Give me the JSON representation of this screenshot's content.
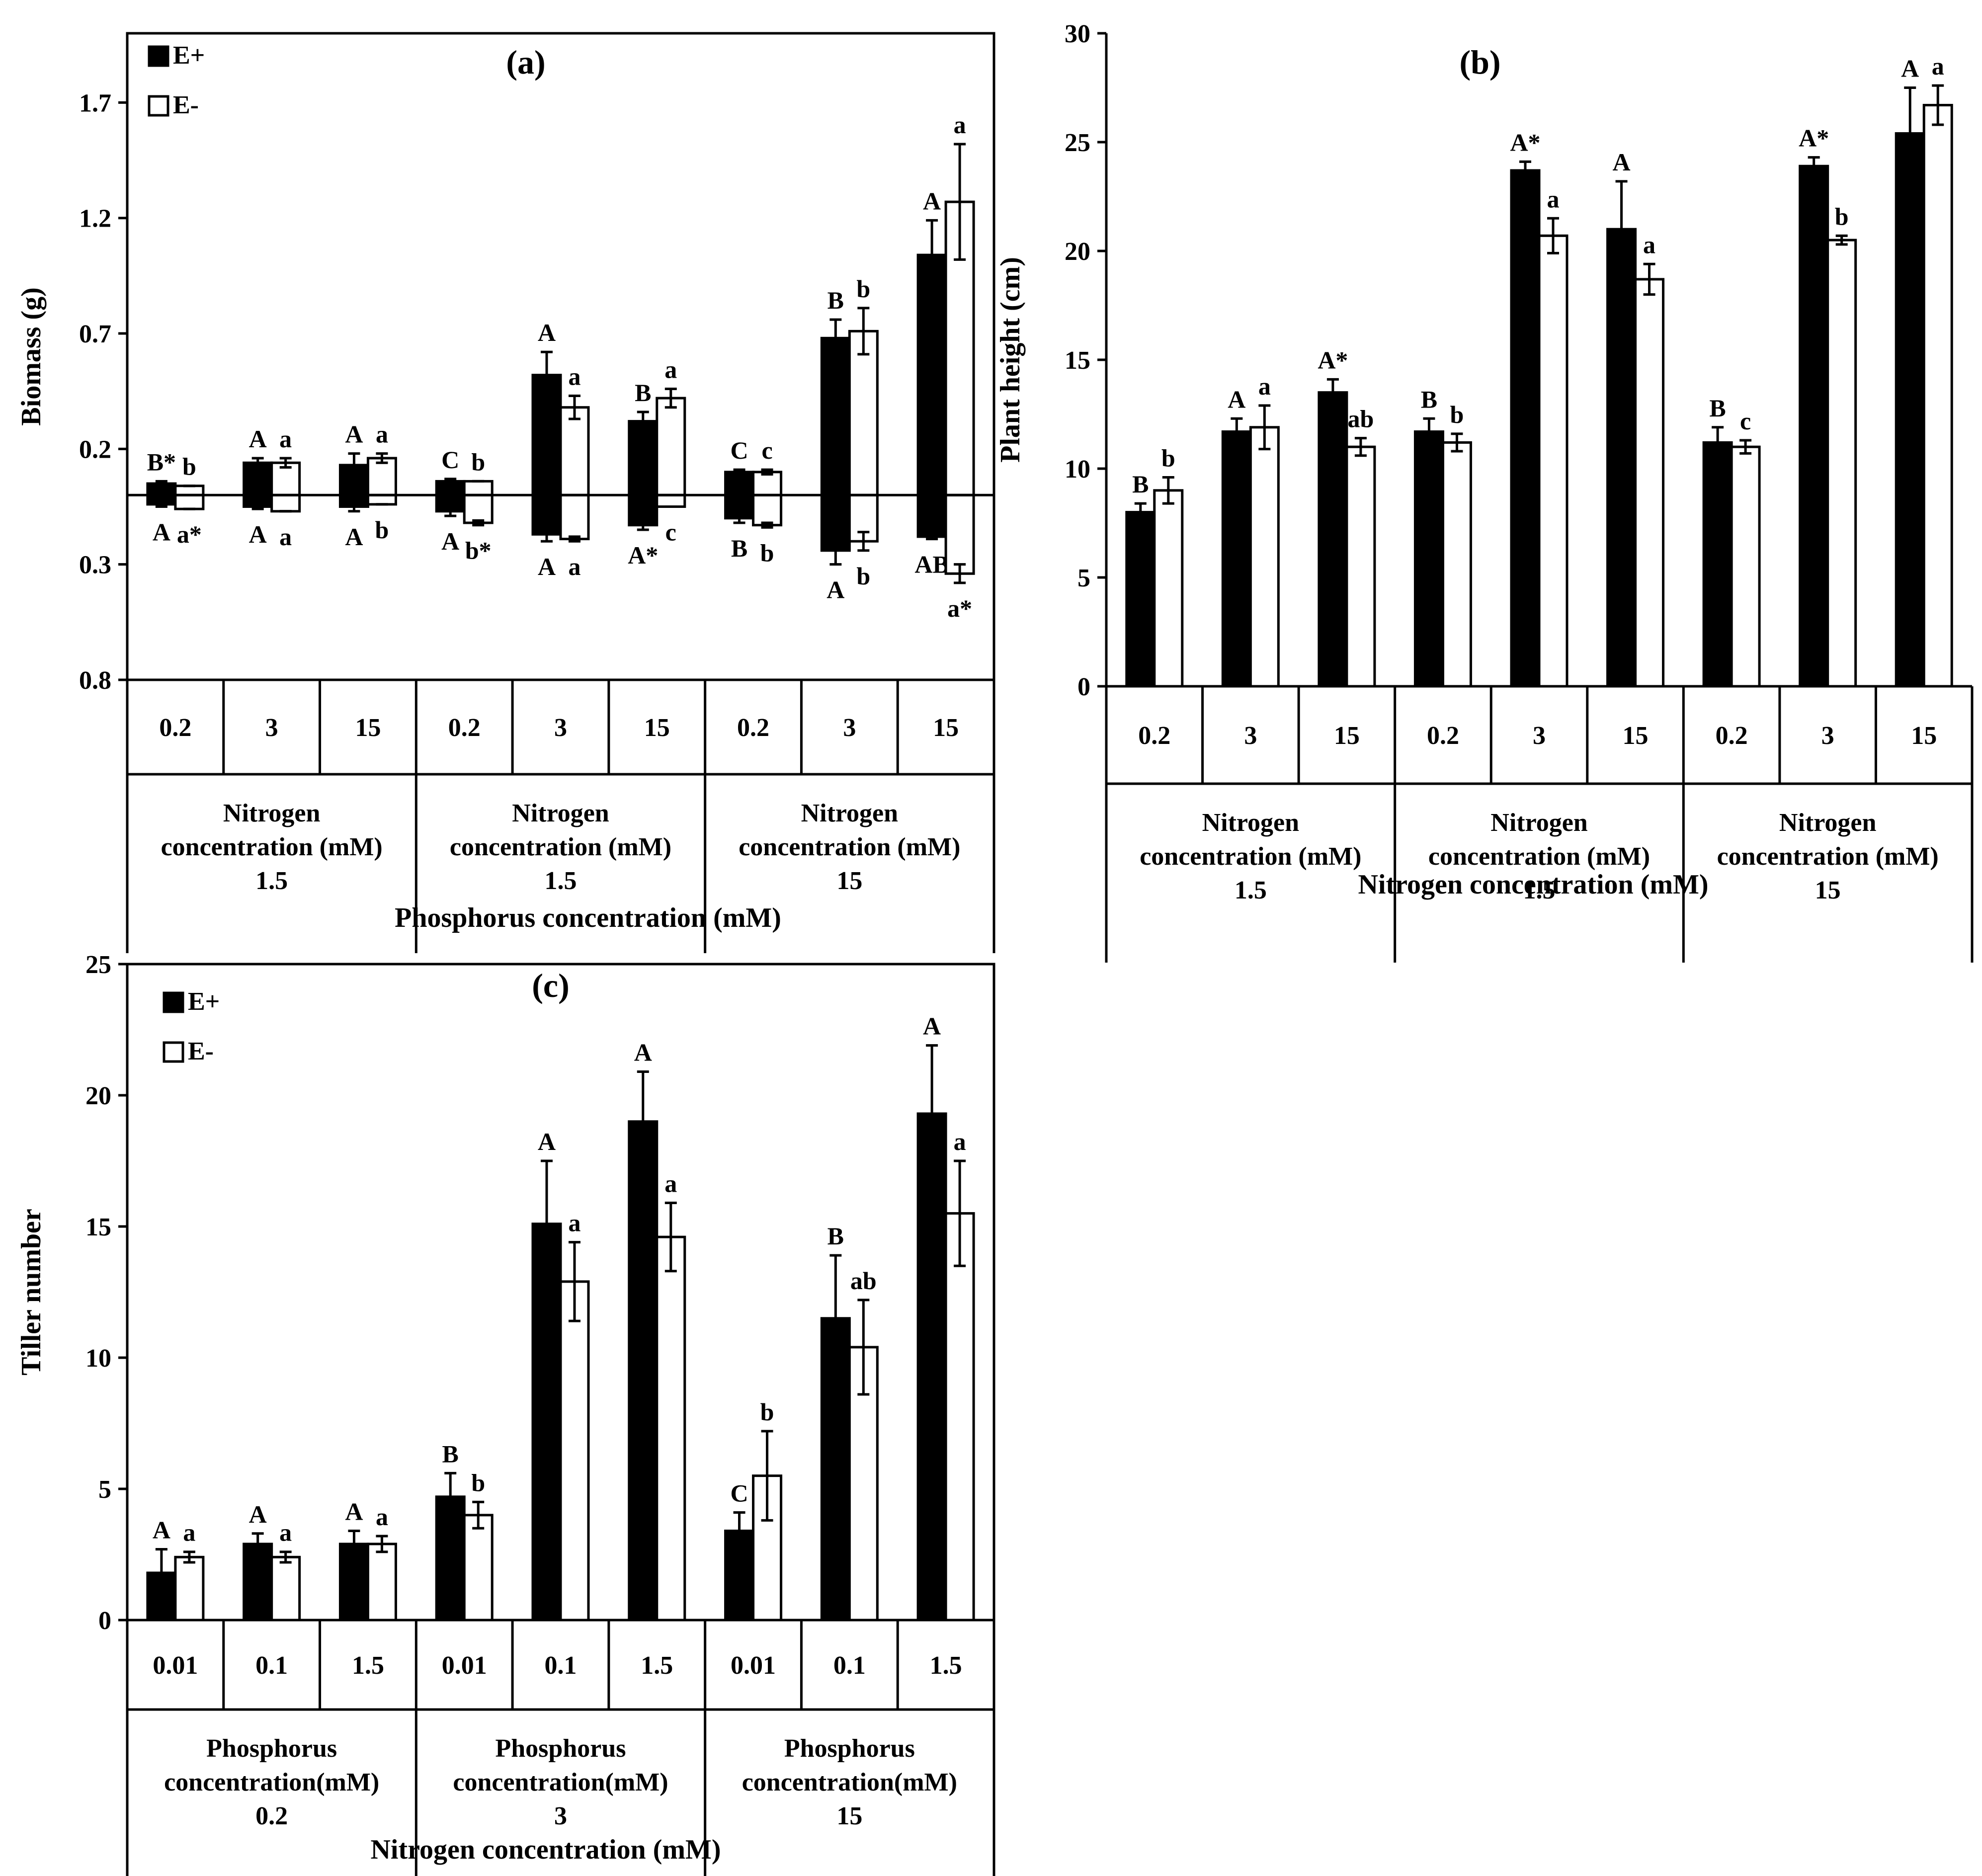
{
  "chart_data": [
    {
      "id": "a",
      "type": "bar",
      "title": "(a)",
      "ylabel": "Biomass (g)",
      "xlabel": "Phosphorus concentration (mM)",
      "ylim": [
        -0.8,
        2.0
      ],
      "upper_ticks": [
        {
          "v": 0.2,
          "label": "0.2"
        },
        {
          "v": 0.7,
          "label": "0.7"
        },
        {
          "v": 1.2,
          "label": "1.2"
        },
        {
          "v": 1.7,
          "label": "1.7"
        }
      ],
      "lower_ticks": [
        {
          "v": -0.3,
          "label": "0.3"
        },
        {
          "v": -0.8,
          "label": "0.8"
        }
      ],
      "legend": {
        "position": "top-left",
        "items": [
          "E+",
          "E-"
        ]
      },
      "categories": [
        "0.2",
        "3",
        "15",
        "0.2",
        "3",
        "15",
        "0.2",
        "3",
        "15"
      ],
      "groups": [
        {
          "line1": "Nitrogen",
          "line2": "concentration (mM)",
          "line3": "1.5"
        },
        {
          "line1": "Nitrogen",
          "line2": "concentration (mM)",
          "line3": "1.5"
        },
        {
          "line1": "Nitrogen",
          "line2": "concentration (mM)",
          "line3": "15"
        }
      ],
      "series": [
        {
          "name": "E+",
          "fill": "#000000",
          "up": [
            0.05,
            0.14,
            0.13,
            0.06,
            0.52,
            0.32,
            0.1,
            0.68,
            1.04
          ],
          "up_err": [
            0.01,
            0.02,
            0.05,
            0.01,
            0.1,
            0.04,
            0.01,
            0.08,
            0.15
          ],
          "up_sig": [
            "B*",
            "A",
            "A",
            "C",
            "A",
            "B",
            "C",
            "B",
            "A"
          ],
          "down": [
            0.04,
            0.05,
            0.05,
            0.07,
            0.17,
            0.13,
            0.1,
            0.24,
            0.18
          ],
          "down_err": [
            0.01,
            0.01,
            0.02,
            0.02,
            0.03,
            0.02,
            0.02,
            0.06,
            0.01
          ],
          "down_sig": [
            "A",
            "A",
            "A",
            "A",
            "A",
            "A*",
            "B",
            "A",
            "AB"
          ]
        },
        {
          "name": "E-",
          "fill": "#ffffff",
          "up": [
            0.04,
            0.14,
            0.16,
            0.06,
            0.38,
            0.42,
            0.1,
            0.71,
            1.27
          ],
          "up_err": [
            0.0,
            0.02,
            0.02,
            0.0,
            0.05,
            0.04,
            0.01,
            0.1,
            0.25
          ],
          "up_sig": [
            "b",
            "a",
            "a",
            "b",
            "a",
            "a",
            "c",
            "b",
            "a"
          ],
          "down": [
            0.06,
            0.07,
            0.04,
            0.12,
            0.19,
            0.05,
            0.13,
            0.2,
            0.34
          ],
          "down_err": [
            0.0,
            0.0,
            0.0,
            0.01,
            0.01,
            0.0,
            0.01,
            0.04,
            0.04
          ],
          "down_sig": [
            "a*",
            "a",
            "b",
            "b*",
            "a",
            "c",
            "b",
            "b",
            "a*"
          ]
        }
      ]
    },
    {
      "id": "b",
      "type": "bar",
      "title": "(b)",
      "ylabel": "Plant height (cm)",
      "xlabel": "Nitrogen concentration (mM)",
      "ylim": [
        0,
        30
      ],
      "yticks": [
        0,
        5,
        10,
        15,
        20,
        25,
        30
      ],
      "categories": [
        "0.2",
        "3",
        "15",
        "0.2",
        "3",
        "15",
        "0.2",
        "3",
        "15"
      ],
      "groups": [
        {
          "line1": "Nitrogen",
          "line2": "concentration (mM)",
          "line3": "1.5"
        },
        {
          "line1": "Nitrogen",
          "line2": "concentration (mM)",
          "line3": "1.5"
        },
        {
          "line1": "Nitrogen",
          "line2": "concentration (mM)",
          "line3": "15"
        }
      ],
      "series": [
        {
          "name": "E+",
          "fill": "#000000",
          "values": [
            8.0,
            11.7,
            13.5,
            11.7,
            23.7,
            21.0,
            11.2,
            23.9,
            25.4
          ],
          "err": [
            0.4,
            0.6,
            0.6,
            0.6,
            0.4,
            2.2,
            0.7,
            0.4,
            2.1
          ],
          "sig": [
            "B",
            "A",
            "A*",
            "B",
            "A*",
            "A",
            "B",
            "A*",
            "A"
          ]
        },
        {
          "name": "E-",
          "fill": "#ffffff",
          "values": [
            9.0,
            11.9,
            11.0,
            11.2,
            20.7,
            18.7,
            11.0,
            20.5,
            26.7
          ],
          "err": [
            0.6,
            1.0,
            0.4,
            0.4,
            0.8,
            0.7,
            0.3,
            0.2,
            0.9
          ],
          "sig": [
            "b",
            "a",
            "ab",
            "b",
            "a",
            "a",
            "c",
            "b",
            "a"
          ]
        }
      ]
    },
    {
      "id": "c",
      "type": "bar",
      "title": "(c)",
      "ylabel": "Tiller number",
      "xlabel": "Nitrogen concentration (mM)",
      "ylim": [
        0,
        25
      ],
      "yticks": [
        0,
        5,
        10,
        15,
        20,
        25
      ],
      "legend": {
        "position": "top-left",
        "items": [
          "E+",
          "E-"
        ]
      },
      "categories": [
        "0.01",
        "0.1",
        "1.5",
        "0.01",
        "0.1",
        "1.5",
        "0.01",
        "0.1",
        "1.5"
      ],
      "groups": [
        {
          "line1": "Phosphorus",
          "line2": "concentration(mM)",
          "line3": "0.2"
        },
        {
          "line1": "Phosphorus",
          "line2": "concentration(mM)",
          "line3": "3"
        },
        {
          "line1": "Phosphorus",
          "line2": "concentration(mM)",
          "line3": "15"
        }
      ],
      "series": [
        {
          "name": "E+",
          "fill": "#000000",
          "values": [
            1.8,
            2.9,
            2.9,
            4.7,
            15.1,
            19.0,
            3.4,
            11.5,
            19.3
          ],
          "err": [
            0.9,
            0.4,
            0.5,
            0.9,
            2.4,
            1.9,
            0.7,
            2.4,
            2.6
          ],
          "sig": [
            "A",
            "A",
            "A",
            "B",
            "A",
            "A",
            "C",
            "B",
            "A"
          ]
        },
        {
          "name": "E-",
          "fill": "#ffffff",
          "values": [
            2.4,
            2.4,
            2.9,
            4.0,
            12.9,
            14.6,
            5.5,
            10.4,
            15.5
          ],
          "err": [
            0.2,
            0.2,
            0.3,
            0.5,
            1.5,
            1.3,
            1.7,
            1.8,
            2.0
          ],
          "sig": [
            "a",
            "a",
            "a",
            "b",
            "a",
            "a",
            "b",
            "ab",
            "a"
          ]
        }
      ]
    }
  ]
}
